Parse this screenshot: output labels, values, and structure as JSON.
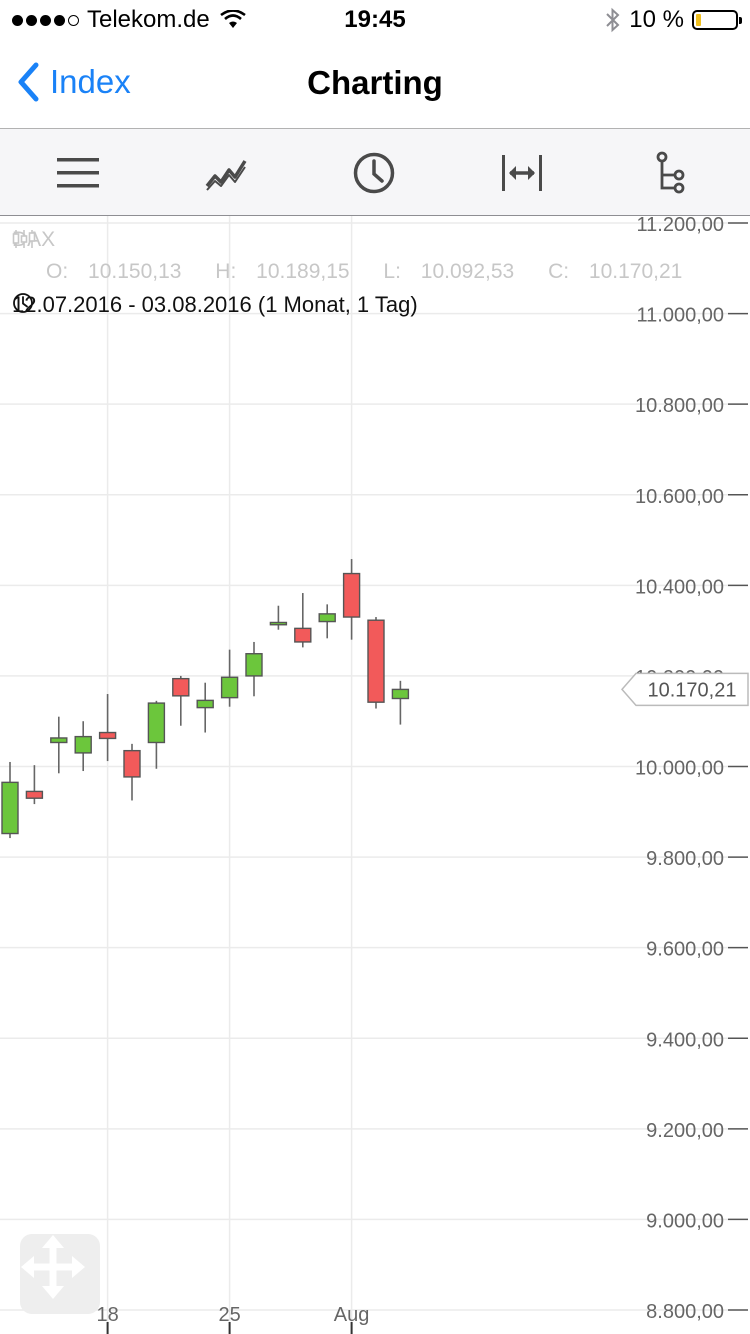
{
  "status_bar": {
    "carrier": "Telekom.de",
    "time": "19:45",
    "battery_text": "10 %",
    "signal_dots": 5,
    "signal_filled": 4
  },
  "nav": {
    "back_label": "Index",
    "title": "Charting"
  },
  "toolbar": {
    "items": [
      {
        "name": "menu-icon",
        "icon": "hamburger"
      },
      {
        "name": "line-chart-icon",
        "icon": "line-chart"
      },
      {
        "name": "clock-icon",
        "icon": "clock"
      },
      {
        "name": "range-width-icon",
        "icon": "arrows-horizontal"
      },
      {
        "name": "indicators-icon",
        "icon": "tree"
      }
    ]
  },
  "chart_info": {
    "symbol": "DAX",
    "open_label": "O:",
    "open": "10.150,13",
    "high_label": "H:",
    "high": "10.189,15",
    "low_label": "L:",
    "low": "10.092,53",
    "close_label": "C:",
    "close": "10.170,21",
    "period": "12.07.2016 - 03.08.2016 (1 Monat, 1 Tag)"
  },
  "chart_data": {
    "type": "candlestick",
    "title": "DAX",
    "ylim": [
      8800,
      11200
    ],
    "y_ticks": [
      11200,
      11000,
      10800,
      10600,
      10400,
      10200,
      10000,
      9800,
      9600,
      9400,
      9200,
      9000,
      8800
    ],
    "y_tick_labels": [
      "11.200,00",
      "11.000,00",
      "10.800,00",
      "10.600,00",
      "10.400,00",
      "10.200,00",
      "10.000,00",
      "9.800,00",
      "9.600,00",
      "9.400,00",
      "9.200,00",
      "9.000,00",
      "8.800,00"
    ],
    "x_ticks": [
      {
        "day": 4,
        "label": "18"
      },
      {
        "day": 9,
        "label": "25"
      },
      {
        "day": 14,
        "label": "Aug"
      }
    ],
    "last_price": 10170.21,
    "last_price_label": "10.170,21",
    "up_color": "#6cc63c",
    "down_color": "#f25a5a",
    "candles": [
      {
        "date": "12.07.",
        "o": 9852,
        "h": 10010,
        "l": 9842,
        "c": 9965
      },
      {
        "date": "13.07.",
        "o": 9945,
        "h": 10003,
        "l": 9917,
        "c": 9930
      },
      {
        "date": "14.07.",
        "o": 10053,
        "h": 10110,
        "l": 9985,
        "c": 10063
      },
      {
        "date": "15.07.",
        "o": 10030,
        "h": 10100,
        "l": 9990,
        "c": 10066
      },
      {
        "date": "18.07.",
        "o": 10075,
        "h": 10160,
        "l": 10012,
        "c": 10062
      },
      {
        "date": "19.07.",
        "o": 10035,
        "h": 10050,
        "l": 9925,
        "c": 9977
      },
      {
        "date": "20.07.",
        "o": 10053,
        "h": 10145,
        "l": 9995,
        "c": 10140
      },
      {
        "date": "21.07.",
        "o": 10194,
        "h": 10200,
        "l": 10090,
        "c": 10156
      },
      {
        "date": "22.07.",
        "o": 10130,
        "h": 10185,
        "l": 10075,
        "c": 10146
      },
      {
        "date": "25.07.",
        "o": 10152,
        "h": 10258,
        "l": 10132,
        "c": 10197
      },
      {
        "date": "26.07.",
        "o": 10200,
        "h": 10275,
        "l": 10155,
        "c": 10249
      },
      {
        "date": "27.07.",
        "o": 10313,
        "h": 10355,
        "l": 10302,
        "c": 10318
      },
      {
        "date": "28.07.",
        "o": 10305,
        "h": 10383,
        "l": 10263,
        "c": 10275
      },
      {
        "date": "29.07.",
        "o": 10320,
        "h": 10358,
        "l": 10283,
        "c": 10337
      },
      {
        "date": "01.08.",
        "o": 10426,
        "h": 10458,
        "l": 10280,
        "c": 10330
      },
      {
        "date": "02.08.",
        "o": 10323,
        "h": 10330,
        "l": 10128,
        "c": 10142
      },
      {
        "date": "03.08.",
        "o": 10150.13,
        "h": 10189.15,
        "l": 10092.53,
        "c": 10170.21
      }
    ]
  }
}
